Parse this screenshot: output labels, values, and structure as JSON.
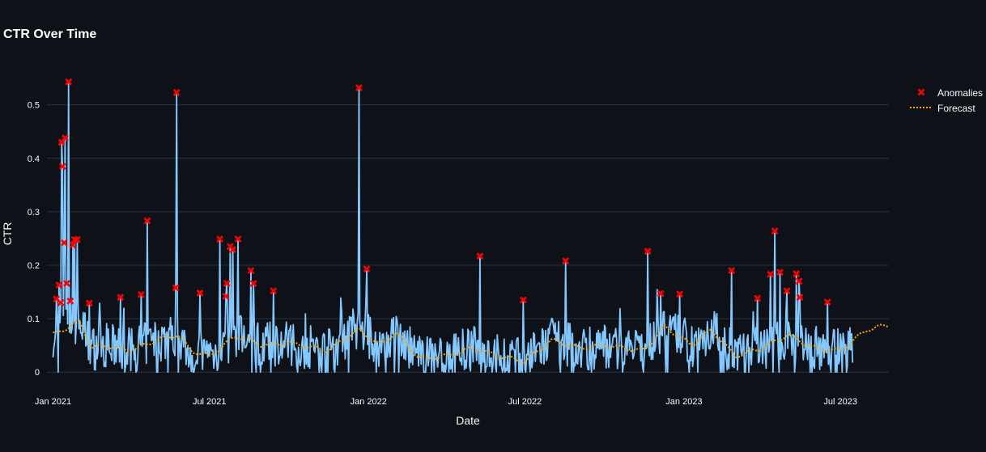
{
  "chart_data": {
    "type": "line",
    "title": "CTR Over Time",
    "xlabel": "Date",
    "ylabel": "CTR",
    "x_range": [
      "2020-12-25",
      "2023-08-26"
    ],
    "ylim": [
      -0.045,
      0.56
    ],
    "grid": true,
    "legend_position": "top-right",
    "x_ticks": [
      {
        "date": "2021-01-01",
        "label": "Jan 2021"
      },
      {
        "date": "2021-07-01",
        "label": "Jul 2021"
      },
      {
        "date": "2022-01-01",
        "label": "Jan 2022"
      },
      {
        "date": "2022-07-01",
        "label": "Jul 2022"
      },
      {
        "date": "2023-01-01",
        "label": "Jan 2023"
      },
      {
        "date": "2023-07-01",
        "label": "Jul 2023"
      }
    ],
    "y_ticks": [
      0,
      0.1,
      0.2,
      0.3,
      0.4,
      0.5
    ],
    "y_tick_labels": [
      "0",
      "0.1",
      "0.2",
      "0.3",
      "0.4",
      "0.5"
    ],
    "colors": {
      "background": "#0e1117",
      "grid": "#283442",
      "ctr_line": "#83c9ff",
      "anomaly": "#ff0000",
      "forecast": "#ffa500"
    },
    "series": [
      {
        "type": "line",
        "values_note": "daily CTR, Jan 2021 - Jul 2023",
        "data": [
          [
            "2021-01-01",
            0.12
          ],
          [
            "2021-01-15",
            0.07
          ],
          [
            "2021-01-25",
            0.43
          ],
          [
            "2021-02-01",
            0.54
          ],
          [
            "2021-02-10",
            0.25
          ],
          [
            "2021-03-01",
            0.05
          ],
          [
            "2021-04-01",
            0.14
          ],
          [
            "2021-05-01",
            0.28
          ],
          [
            "2021-05-20",
            0.52
          ],
          [
            "2021-06-01",
            0.06
          ],
          [
            "2021-07-01",
            0.05
          ],
          [
            "2021-08-01",
            0.25
          ],
          [
            "2021-09-01",
            0.25
          ],
          [
            "2021-10-01",
            0.15
          ],
          [
            "2021-11-01",
            0.05
          ],
          [
            "2021-12-20",
            0.53
          ],
          [
            "2022-01-01",
            0.19
          ],
          [
            "2022-02-01",
            0.05
          ],
          [
            "2022-04-01",
            0.05
          ],
          [
            "2022-06-01",
            0.22
          ],
          [
            "2022-07-01",
            0.13
          ],
          [
            "2022-08-01",
            0.21
          ],
          [
            "2022-10-01",
            0.05
          ],
          [
            "2022-12-01",
            0.23
          ],
          [
            "2023-01-01",
            0.15
          ],
          [
            "2023-03-01",
            0.19
          ],
          [
            "2023-04-15",
            0.26
          ],
          [
            "2023-05-01",
            0.18
          ],
          [
            "2023-06-01",
            0.13
          ],
          [
            "2023-07-15",
            0.05
          ]
        ]
      },
      {
        "name": "Anomalies",
        "type": "scatter",
        "data": [
          [
            "2021-01-05",
            0.137
          ],
          [
            "2021-01-08",
            0.163
          ],
          [
            "2021-01-10",
            0.13
          ],
          [
            "2021-01-11",
            0.43
          ],
          [
            "2021-01-12",
            0.385
          ],
          [
            "2021-01-14",
            0.242
          ],
          [
            "2021-01-15",
            0.438
          ],
          [
            "2021-01-17",
            0.166
          ],
          [
            "2021-01-19",
            0.543
          ],
          [
            "2021-01-21",
            0.133
          ],
          [
            "2021-01-24",
            0.238
          ],
          [
            "2021-01-26",
            0.248
          ],
          [
            "2021-01-29",
            0.248
          ],
          [
            "2021-02-12",
            0.129
          ],
          [
            "2021-03-20",
            0.14
          ],
          [
            "2021-04-13",
            0.145
          ],
          [
            "2021-04-20",
            0.283
          ],
          [
            "2021-05-23",
            0.158
          ],
          [
            "2021-05-24",
            0.523
          ],
          [
            "2021-06-20",
            0.148
          ],
          [
            "2021-07-13",
            0.249
          ],
          [
            "2021-07-20",
            0.142
          ],
          [
            "2021-07-21",
            0.166
          ],
          [
            "2021-07-25",
            0.235
          ],
          [
            "2021-07-28",
            0.229
          ],
          [
            "2021-08-03",
            0.249
          ],
          [
            "2021-08-18",
            0.19
          ],
          [
            "2021-08-21",
            0.166
          ],
          [
            "2021-09-13",
            0.152
          ],
          [
            "2021-12-21",
            0.532
          ],
          [
            "2021-12-30",
            0.193
          ],
          [
            "2022-05-10",
            0.217
          ],
          [
            "2022-06-29",
            0.135
          ],
          [
            "2022-08-17",
            0.208
          ],
          [
            "2022-11-20",
            0.226
          ],
          [
            "2022-12-05",
            0.147
          ],
          [
            "2022-12-27",
            0.146
          ],
          [
            "2023-02-25",
            0.19
          ],
          [
            "2023-03-27",
            0.138
          ],
          [
            "2023-04-11",
            0.183
          ],
          [
            "2023-04-16",
            0.264
          ],
          [
            "2023-04-22",
            0.187
          ],
          [
            "2023-04-30",
            0.152
          ],
          [
            "2023-05-11",
            0.184
          ],
          [
            "2023-05-14",
            0.17
          ],
          [
            "2023-05-15",
            0.14
          ],
          [
            "2023-06-16",
            0.131
          ]
        ]
      },
      {
        "name": "Forecast",
        "type": "line",
        "style": "dotted",
        "data": [
          [
            "2021-01-01",
            0.07
          ],
          [
            "2021-02-01",
            0.095
          ],
          [
            "2021-02-15",
            0.045
          ],
          [
            "2021-03-01",
            0.05
          ],
          [
            "2021-04-01",
            0.04
          ],
          [
            "2021-05-01",
            0.06
          ],
          [
            "2021-05-25",
            0.07
          ],
          [
            "2021-06-10",
            0.04
          ],
          [
            "2021-07-01",
            0.03
          ],
          [
            "2021-08-01",
            0.068
          ],
          [
            "2021-09-01",
            0.05
          ],
          [
            "2021-10-01",
            0.055
          ],
          [
            "2021-11-15",
            0.04
          ],
          [
            "2021-12-20",
            0.08
          ],
          [
            "2022-01-15",
            0.05
          ],
          [
            "2022-02-01",
            0.075
          ],
          [
            "2022-03-01",
            0.025
          ],
          [
            "2022-04-01",
            0.03
          ],
          [
            "2022-05-01",
            0.045
          ],
          [
            "2022-06-01",
            0.03
          ],
          [
            "2022-07-01",
            0.02
          ],
          [
            "2022-08-01",
            0.06
          ],
          [
            "2022-09-01",
            0.045
          ],
          [
            "2022-10-01",
            0.05
          ],
          [
            "2022-11-15",
            0.04
          ],
          [
            "2022-12-10",
            0.085
          ],
          [
            "2023-01-10",
            0.05
          ],
          [
            "2023-02-01",
            0.08
          ],
          [
            "2023-03-01",
            0.03
          ],
          [
            "2023-04-01",
            0.045
          ],
          [
            "2023-05-01",
            0.07
          ],
          [
            "2023-06-01",
            0.045
          ],
          [
            "2023-07-01",
            0.04
          ],
          [
            "2023-08-01",
            0.08
          ],
          [
            "2023-08-26",
            0.088
          ]
        ]
      }
    ]
  }
}
